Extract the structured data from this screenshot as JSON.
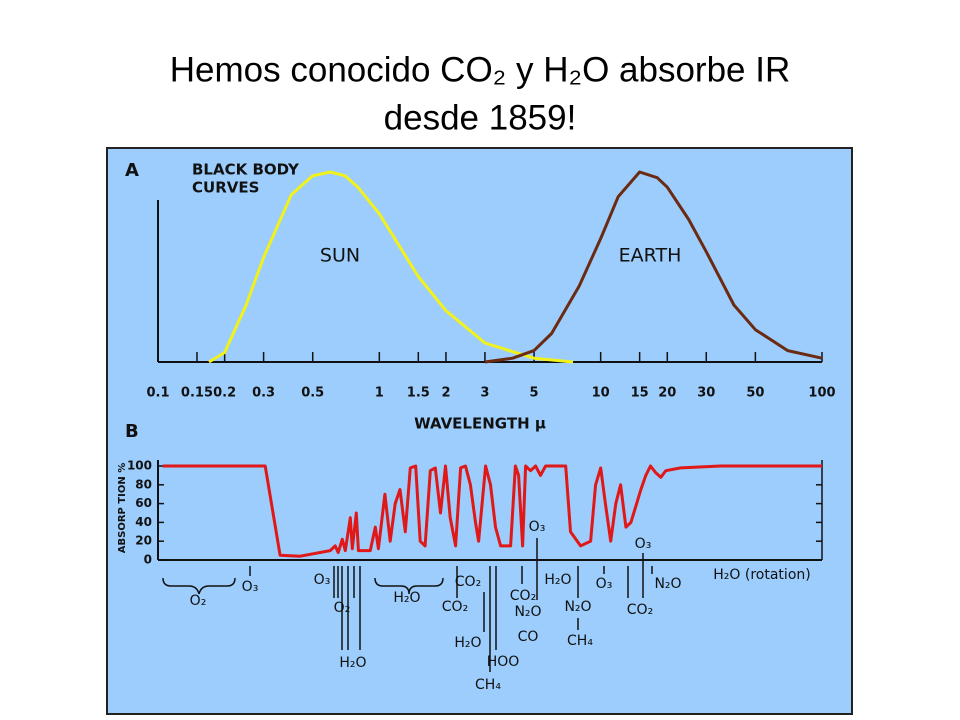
{
  "slide": {
    "title_lines": [
      "Hemos conocido CO₂ y H₂O absorbe IR",
      "desde 1859!"
    ]
  },
  "chart_data": [
    {
      "type": "line",
      "panel": "A",
      "title_lines": [
        "BLACK BODY",
        "CURVES"
      ],
      "x_label": "WAVELENGTH μ",
      "xscale": "log",
      "xlim": [
        0.1,
        100
      ],
      "xticks": [
        0.1,
        0.15,
        0.2,
        0.3,
        0.5,
        1,
        1.5,
        2,
        3,
        5,
        10,
        15,
        20,
        30,
        50,
        100
      ],
      "ylim": [
        0,
        1
      ],
      "series": [
        {
          "name": "SUN",
          "color": "#f2f21a",
          "x": [
            0.17,
            0.2,
            0.25,
            0.3,
            0.4,
            0.5,
            0.6,
            0.7,
            0.8,
            1,
            1.5,
            2,
            3,
            5,
            7.5
          ],
          "values": [
            0,
            0.05,
            0.3,
            0.55,
            0.88,
            0.98,
            1.0,
            0.98,
            0.92,
            0.78,
            0.45,
            0.27,
            0.1,
            0.02,
            0
          ]
        },
        {
          "name": "EARTH",
          "color": "#6b2a12",
          "x": [
            3,
            4,
            5,
            6,
            8,
            10,
            12,
            15,
            18,
            20,
            25,
            30,
            40,
            50,
            70,
            100
          ],
          "values": [
            0,
            0.02,
            0.06,
            0.15,
            0.4,
            0.65,
            0.87,
            1.0,
            0.97,
            0.92,
            0.75,
            0.58,
            0.3,
            0.17,
            0.06,
            0.02
          ]
        }
      ]
    },
    {
      "type": "line",
      "panel": "B",
      "y_label": "ABSORP TION %",
      "xscale": "log",
      "xlim": [
        0.1,
        100
      ],
      "ylim": [
        0,
        100
      ],
      "yticks": [
        0,
        20,
        40,
        60,
        80,
        100
      ],
      "series": [
        {
          "color": "#e01818",
          "x": [
            0.105,
            0.305,
            0.356,
            0.439,
            0.6,
            0.632,
            0.652,
            0.68,
            0.702,
            0.739,
            0.755,
            0.787,
            0.804,
            0.91,
            0.959,
            0.99,
            1.06,
            1.12,
            1.18,
            1.24,
            1.31,
            1.38,
            1.46,
            1.53,
            1.61,
            1.7,
            1.79,
            1.89,
            1.99,
            2.09,
            2.21,
            2.33,
            2.45,
            2.58,
            2.72,
            2.81,
            3.02,
            3.18,
            3.35,
            3.53,
            3.72,
            3.92,
            4.12,
            4.26,
            4.44,
            4.58,
            4.82,
            5.08,
            5.35,
            5.64,
            6.95,
            7.31,
            8.12,
            9.01,
            9.49,
            10,
            10.5,
            11.1,
            11.7,
            12.3,
            13,
            13.7,
            15.2,
            16,
            16.8,
            17.7,
            18.7,
            19.7,
            23,
            34.9,
            100
          ],
          "values": [
            100,
            100,
            5,
            4,
            10,
            15,
            8,
            22,
            10,
            45,
            12,
            50,
            10,
            10,
            35,
            12,
            70,
            20,
            60,
            75,
            30,
            98,
            100,
            20,
            15,
            95,
            98,
            50,
            100,
            45,
            15,
            98,
            100,
            80,
            40,
            20,
            100,
            80,
            35,
            15,
            15,
            15,
            100,
            90,
            15,
            100,
            95,
            100,
            90,
            100,
            100,
            30,
            15,
            20,
            80,
            98,
            60,
            20,
            60,
            80,
            35,
            40,
            75,
            90,
            100,
            93,
            88,
            95,
            98,
            100,
            100
          ]
        }
      ],
      "absorbers": [
        "O₂",
        "O₃",
        "O₃",
        "O₂",
        "H₂O",
        "H₂O",
        "CO₂",
        "CO₂",
        "H₂O",
        "HOO",
        "CH₄",
        "CO₂",
        "O₃",
        "N₂O",
        "CO",
        "H₂O",
        "N₂O",
        "CH₄",
        "O₃",
        "CO₂",
        "O₃",
        "N₂O",
        "H₂O (rotation)"
      ]
    }
  ]
}
